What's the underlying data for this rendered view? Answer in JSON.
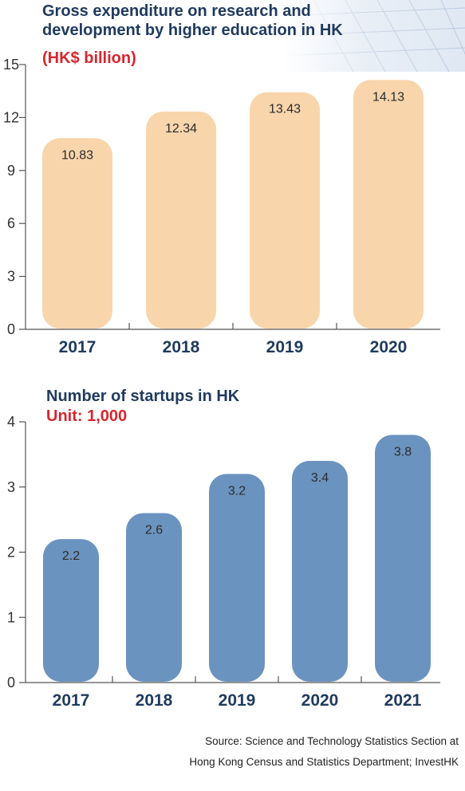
{
  "chart_data": [
    {
      "type": "bar",
      "title_line1": "Gross expenditure on research and",
      "title_line2": "development by higher education in HK",
      "unit": "(HK$ billion)",
      "categories": [
        "2017",
        "2018",
        "2019",
        "2020"
      ],
      "values": [
        10.83,
        12.34,
        13.43,
        14.13
      ],
      "value_labels": [
        "10.83",
        "12.34",
        "13.43",
        "14.13"
      ],
      "ylim": [
        0,
        15
      ],
      "yticks": [
        0,
        3,
        6,
        9,
        12,
        15
      ],
      "bar_color": "#f8d5ab",
      "unit_color": "#d7262e",
      "title_color": "#1f3a5f",
      "category_color": "#1f3a5f"
    },
    {
      "type": "bar",
      "title": "Number of startups in HK",
      "unit": "Unit: 1,000",
      "categories": [
        "2017",
        "2018",
        "2019",
        "2020",
        "2021"
      ],
      "values": [
        2.2,
        2.6,
        3.2,
        3.4,
        3.8
      ],
      "value_labels": [
        "2.2",
        "2.6",
        "3.2",
        "3.4",
        "3.8"
      ],
      "ylim": [
        0,
        4
      ],
      "yticks": [
        0,
        1,
        2,
        3,
        4
      ],
      "bar_color": "#6b93bf",
      "unit_color": "#d7262e",
      "title_color": "#1f3a5f",
      "category_color": "#1f3a5f"
    }
  ],
  "source_line1": "Source: Science and Technology Statistics Section at",
  "source_line2": "Hong Kong Census and Statistics Department; InvestHK"
}
